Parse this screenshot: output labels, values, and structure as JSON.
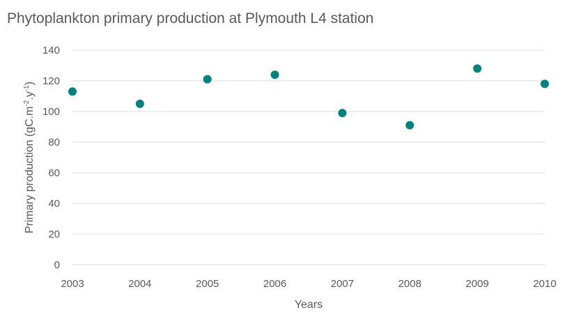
{
  "chart_data": {
    "type": "scatter",
    "title": "Phytoplankton primary production at Plymouth L4 station",
    "xlabel": "Years",
    "ylabel": "Primary production (gC.m-2.y-1)",
    "ylabel_parts": {
      "base": "Primary production (gC.m",
      "sup1": "-2",
      "mid": ".y",
      "sup2": "-1",
      "end": ")"
    },
    "x": [
      2003,
      2004,
      2005,
      2006,
      2007,
      2008,
      2009,
      2010
    ],
    "values": [
      113,
      105,
      121,
      124,
      99,
      91,
      128,
      118
    ],
    "x_ticks": [
      "2003",
      "2004",
      "2005",
      "2006",
      "2007",
      "2008",
      "2009",
      "2010"
    ],
    "y_ticks": [
      "0",
      "20",
      "40",
      "60",
      "80",
      "100",
      "120",
      "140"
    ],
    "xlim": [
      2003,
      2010
    ],
    "ylim": [
      0,
      140
    ],
    "grid": true,
    "colors": {
      "marker": "#00827F",
      "grid": "#D9D9D9",
      "text": "#595959"
    }
  }
}
